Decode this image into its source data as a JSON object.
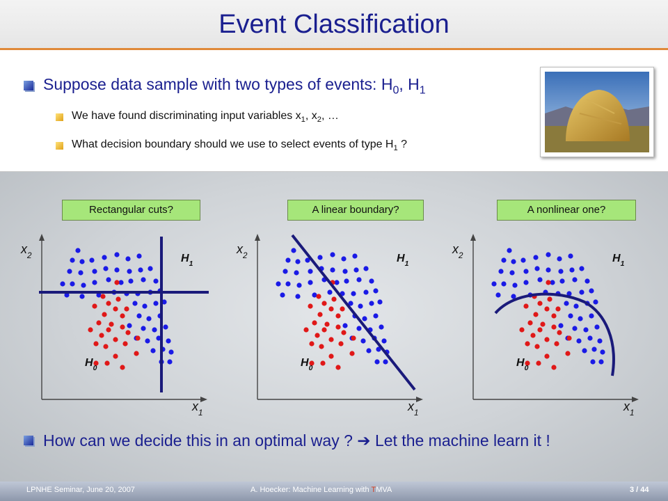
{
  "title": "Event Classification",
  "bullets": {
    "main": [
      "Suppose data sample with two types of events: H",
      "0",
      ", H",
      "1"
    ],
    "sub1": [
      "We have found discriminating input variables x",
      "1",
      ", x",
      "2",
      ", …"
    ],
    "sub2": [
      "What decision boundary should we use to select events of type H",
      "1",
      " ?"
    ],
    "bottom": "How can we decide this in an optimal way ?  ➔  Let the machine learn it !"
  },
  "panels": [
    {
      "question": "Rectangular cuts?",
      "boundary": "rect"
    },
    {
      "question": "A linear boundary?",
      "boundary": "linear"
    },
    {
      "question": "A nonlinear one?",
      "boundary": "nonlinear"
    }
  ],
  "axis": {
    "x": "x",
    "y": "x",
    "x_sub": "1",
    "y_sub": "2"
  },
  "class_labels": {
    "h0": "H",
    "h0_sub": "0",
    "h1": "H",
    "h1_sub": "1"
  },
  "colors": {
    "signal": "#e01818",
    "background": "#1a1ae6",
    "boundary": "#1a1a7a",
    "title": "#1a1f8f",
    "question_box": "#a6e67a"
  },
  "footer": {
    "left": "LPNHE Seminar, June 20, 2007",
    "mid_prefix": "A. Hoecker: Machine Learning with ",
    "mid_highlight": "T",
    "mid_suffix": "MVA",
    "page": "3 / 44"
  },
  "icons": {
    "bullet_main": "blue-square-bullet",
    "bullet_sub": "yellow-square-bullet",
    "photo": "haystack-photo"
  }
}
